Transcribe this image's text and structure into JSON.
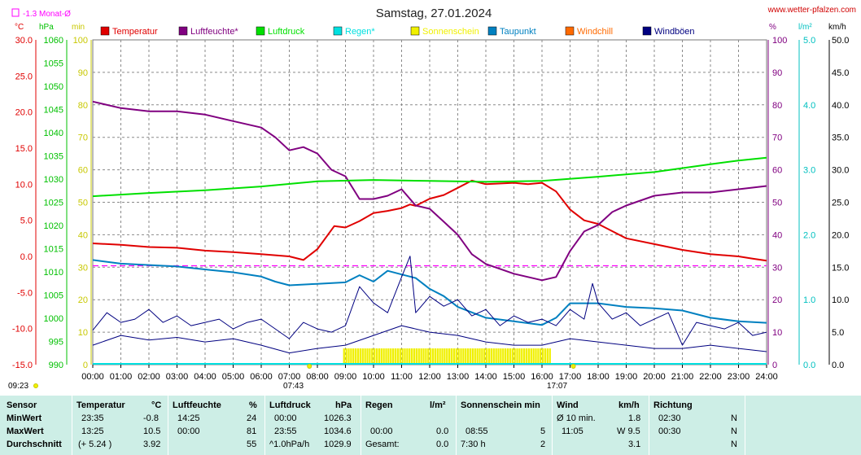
{
  "title": "Samstag, 27.01.2024",
  "source": "www.wetter-pfalzen.com",
  "avg_label": "-1.3 Monat-Ø",
  "units_left": [
    "°C",
    "hPa",
    "min"
  ],
  "units_right": [
    "%",
    "l/m²",
    "km/h"
  ],
  "colors": {
    "temperature": "#e00000",
    "humidity": "#800080",
    "pressure": "#00e000",
    "rain": "#00e0e0",
    "sunshine": "#f0f000",
    "dewpoint": "#0080c0",
    "windchill": "#ff6a00",
    "gusts": "#000080",
    "wind": "#000080",
    "avg": "#ff00ff"
  },
  "legend": [
    {
      "key": "temperature",
      "label": "Temperatur"
    },
    {
      "key": "humidity",
      "label": "Luftfeuchte*"
    },
    {
      "key": "pressure",
      "label": "Luftdruck"
    },
    {
      "key": "rain",
      "label": "Regen*"
    },
    {
      "key": "sunshine",
      "label": "Sonnenschein"
    },
    {
      "key": "dewpoint",
      "label": "Taupunkt"
    },
    {
      "key": "windchill",
      "label": "Windchill"
    },
    {
      "key": "gusts",
      "label": "Windböen"
    }
  ],
  "time_markers": {
    "sunrise": "07:43",
    "sunset": "17:07",
    "now": "09:23"
  },
  "chart_data": {
    "type": "line",
    "x_ticks": [
      "00:00",
      "01:00",
      "02:00",
      "03:00",
      "04:00",
      "05:00",
      "06:00",
      "07:00",
      "08:00",
      "09:00",
      "10:00",
      "11:00",
      "12:00",
      "13:00",
      "14:00",
      "15:00",
      "16:00",
      "17:00",
      "18:00",
      "19:00",
      "20:00",
      "21:00",
      "22:00",
      "23:00",
      "24:00"
    ],
    "axes": {
      "temperature_c": {
        "range": [
          -15,
          30
        ],
        "ticks": [
          "30.0",
          "25.0",
          "20.0",
          "15.0",
          "10.0",
          "5.0",
          "0.0",
          "-5.0",
          "-10.0",
          "-15.0"
        ]
      },
      "pressure_hpa": {
        "range": [
          990,
          1060
        ],
        "ticks": [
          "1060",
          "1055",
          "1050",
          "1045",
          "1040",
          "1035",
          "1030",
          "1025",
          "1020",
          "1015",
          "1010",
          "1005",
          "1000",
          "995",
          "990"
        ]
      },
      "sunshine_min": {
        "range": [
          0,
          100
        ],
        "ticks": [
          "100",
          "90",
          "80",
          "70",
          "60",
          "50",
          "40",
          "30",
          "20",
          "10",
          "0"
        ]
      },
      "humidity_pct": {
        "range": [
          0,
          100
        ],
        "ticks": [
          "100",
          "90",
          "80",
          "70",
          "60",
          "50",
          "40",
          "30",
          "20",
          "10",
          "0"
        ]
      },
      "rain_lm2": {
        "range": [
          0,
          5
        ],
        "ticks": [
          "5.0",
          "4.0",
          "3.0",
          "2.0",
          "1.0",
          "0.0"
        ]
      },
      "wind_kmh": {
        "range": [
          0,
          50
        ],
        "ticks": [
          "50.0",
          "45.0",
          "40.0",
          "35.0",
          "30.0",
          "25.0",
          "20.0",
          "15.0",
          "10.0",
          "5.0",
          "0.0"
        ]
      }
    },
    "monthly_avg_temperature": -1.3,
    "sunshine_period": [
      "08:55",
      "16:20"
    ],
    "series": [
      {
        "key": "temperature",
        "name": "Temperatur",
        "points": [
          [
            0,
            1.8
          ],
          [
            1,
            1.6
          ],
          [
            2,
            1.3
          ],
          [
            3,
            1.2
          ],
          [
            4,
            0.8
          ],
          [
            5,
            0.6
          ],
          [
            6,
            0.3
          ],
          [
            7,
            0.0
          ],
          [
            7.5,
            -0.5
          ],
          [
            8,
            1.0
          ],
          [
            8.6,
            4.2
          ],
          [
            9,
            4.0
          ],
          [
            9.5,
            4.9
          ],
          [
            10,
            6.0
          ],
          [
            10.5,
            6.3
          ],
          [
            11,
            6.7
          ],
          [
            11.3,
            7.2
          ],
          [
            11.5,
            7.0
          ],
          [
            12,
            8.0
          ],
          [
            12.5,
            8.5
          ],
          [
            13,
            9.5
          ],
          [
            13.5,
            10.5
          ],
          [
            14,
            10.0
          ],
          [
            15,
            10.2
          ],
          [
            15.5,
            10.0
          ],
          [
            16,
            10.2
          ],
          [
            16.5,
            9.0
          ],
          [
            17,
            6.5
          ],
          [
            17.5,
            5.0
          ],
          [
            18,
            4.5
          ],
          [
            18.5,
            3.5
          ],
          [
            19,
            2.5
          ],
          [
            20,
            1.7
          ],
          [
            21,
            0.9
          ],
          [
            22,
            0.3
          ],
          [
            23,
            0.0
          ],
          [
            23.5,
            -0.3
          ],
          [
            24,
            -0.6
          ]
        ]
      },
      {
        "key": "dewpoint",
        "name": "Taupunkt",
        "points": [
          [
            0,
            -0.5
          ],
          [
            1,
            -1.0
          ],
          [
            2,
            -1.2
          ],
          [
            3,
            -1.4
          ],
          [
            4,
            -1.8
          ],
          [
            5,
            -2.2
          ],
          [
            6,
            -2.8
          ],
          [
            6.5,
            -3.5
          ],
          [
            7,
            -4.0
          ],
          [
            8,
            -3.8
          ],
          [
            9,
            -3.6
          ],
          [
            9.5,
            -2.6
          ],
          [
            10,
            -3.5
          ],
          [
            10.5,
            -2.0
          ],
          [
            11,
            -2.5
          ],
          [
            11.5,
            -3.0
          ],
          [
            12,
            -4.5
          ],
          [
            12.5,
            -5.5
          ],
          [
            13,
            -7.0
          ],
          [
            14,
            -8.5
          ],
          [
            15,
            -9.0
          ],
          [
            16,
            -9.5
          ],
          [
            16.5,
            -8.5
          ],
          [
            17,
            -6.5
          ],
          [
            18,
            -6.5
          ],
          [
            19,
            -7.0
          ],
          [
            20,
            -7.2
          ],
          [
            21,
            -7.5
          ],
          [
            22,
            -8.5
          ],
          [
            23,
            -9.0
          ],
          [
            24,
            -9.2
          ]
        ]
      },
      {
        "key": "humidity",
        "name": "Luftfeuchte",
        "points": [
          [
            0,
            81
          ],
          [
            1,
            79
          ],
          [
            2,
            78
          ],
          [
            3,
            78
          ],
          [
            4,
            77
          ],
          [
            5,
            75
          ],
          [
            6,
            73
          ],
          [
            6.5,
            70
          ],
          [
            7,
            66
          ],
          [
            7.5,
            67
          ],
          [
            8,
            65
          ],
          [
            8.5,
            60
          ],
          [
            9,
            58
          ],
          [
            9.5,
            51
          ],
          [
            10,
            51
          ],
          [
            10.5,
            52
          ],
          [
            11,
            54
          ],
          [
            11.5,
            49
          ],
          [
            12,
            48
          ],
          [
            12.5,
            44
          ],
          [
            13,
            40
          ],
          [
            13.5,
            34
          ],
          [
            14,
            31
          ],
          [
            15,
            28
          ],
          [
            16,
            26
          ],
          [
            16.5,
            27
          ],
          [
            17,
            35
          ],
          [
            17.5,
            41
          ],
          [
            18,
            43
          ],
          [
            18.5,
            47
          ],
          [
            19,
            49
          ],
          [
            20,
            52
          ],
          [
            21,
            53
          ],
          [
            22,
            53
          ],
          [
            23,
            54
          ],
          [
            24,
            55
          ]
        ]
      },
      {
        "key": "pressure",
        "name": "Luftdruck",
        "points": [
          [
            0,
            1026.3
          ],
          [
            2,
            1027.0
          ],
          [
            4,
            1027.6
          ],
          [
            6,
            1028.4
          ],
          [
            8,
            1029.5
          ],
          [
            10,
            1029.8
          ],
          [
            12,
            1029.6
          ],
          [
            14,
            1029.4
          ],
          [
            16,
            1029.6
          ],
          [
            18,
            1030.5
          ],
          [
            20,
            1031.5
          ],
          [
            22,
            1033.2
          ],
          [
            23,
            1034.0
          ],
          [
            24,
            1034.6
          ]
        ]
      },
      {
        "key": "gusts",
        "name": "Windböen",
        "points": [
          [
            0,
            5.3
          ],
          [
            0.5,
            8.0
          ],
          [
            1,
            6.5
          ],
          [
            1.5,
            7.0
          ],
          [
            2,
            8.5
          ],
          [
            2.5,
            6.5
          ],
          [
            3,
            7.5
          ],
          [
            3.5,
            6.0
          ],
          [
            4,
            6.5
          ],
          [
            4.5,
            7.0
          ],
          [
            5,
            5.5
          ],
          [
            5.5,
            6.5
          ],
          [
            6,
            7.0
          ],
          [
            6.5,
            5.5
          ],
          [
            7,
            4.0
          ],
          [
            7.5,
            6.5
          ],
          [
            8,
            5.5
          ],
          [
            8.5,
            5.0
          ],
          [
            9,
            6.0
          ],
          [
            9.5,
            12.0
          ],
          [
            10,
            9.5
          ],
          [
            10.5,
            8.0
          ],
          [
            11,
            13.5
          ],
          [
            11.3,
            16.7
          ],
          [
            11.5,
            8.0
          ],
          [
            12,
            10.5
          ],
          [
            12.5,
            9.0
          ],
          [
            13,
            10.0
          ],
          [
            13.5,
            7.5
          ],
          [
            14,
            8.5
          ],
          [
            14.5,
            6.0
          ],
          [
            15,
            7.5
          ],
          [
            15.5,
            6.5
          ],
          [
            16,
            7.0
          ],
          [
            16.5,
            6.0
          ],
          [
            17,
            8.5
          ],
          [
            17.5,
            7.0
          ],
          [
            17.8,
            12.5
          ],
          [
            18,
            9.5
          ],
          [
            18.5,
            7.0
          ],
          [
            19,
            8.0
          ],
          [
            19.5,
            6.0
          ],
          [
            20,
            7.0
          ],
          [
            20.5,
            8.0
          ],
          [
            21,
            3.0
          ],
          [
            21.5,
            6.5
          ],
          [
            22,
            6.0
          ],
          [
            22.5,
            5.5
          ],
          [
            23,
            6.5
          ],
          [
            23.5,
            4.5
          ],
          [
            24,
            5.0
          ]
        ]
      },
      {
        "key": "wind",
        "name": "Wind",
        "points": [
          [
            0,
            3.0
          ],
          [
            1,
            4.5
          ],
          [
            2,
            3.8
          ],
          [
            3,
            4.2
          ],
          [
            4,
            3.5
          ],
          [
            5,
            4.0
          ],
          [
            6,
            3.0
          ],
          [
            7,
            1.8
          ],
          [
            8,
            2.5
          ],
          [
            9,
            3.0
          ],
          [
            10,
            4.5
          ],
          [
            11,
            6.0
          ],
          [
            12,
            5.0
          ],
          [
            13,
            4.5
          ],
          [
            14,
            3.5
          ],
          [
            15,
            3.0
          ],
          [
            16,
            3.0
          ],
          [
            17,
            4.0
          ],
          [
            18,
            3.5
          ],
          [
            19,
            3.0
          ],
          [
            20,
            2.5
          ],
          [
            21,
            2.5
          ],
          [
            22,
            3.0
          ],
          [
            23,
            2.5
          ],
          [
            24,
            2.0
          ]
        ]
      }
    ]
  },
  "stats": {
    "headers": [
      {
        "label": "Sensor",
        "unit": ""
      },
      {
        "label": "Temperatur",
        "unit": "°C"
      },
      {
        "label": "Luftfeuchte",
        "unit": "%"
      },
      {
        "label": "Luftdruck",
        "unit": "hPa"
      },
      {
        "label": "Regen",
        "unit": "l/m²"
      },
      {
        "label": "Sonnenschein min",
        "unit": ""
      },
      {
        "label": "Wind",
        "unit": "km/h"
      },
      {
        "label": "Richtung",
        "unit": ""
      }
    ],
    "rows": [
      {
        "label": "MinWert",
        "temp_time": "23:35",
        "temp_val": "-0.8",
        "hum_time": "14:25",
        "hum_val": "24",
        "press_time": "00:00",
        "press_val": "1026.3",
        "rain_time": "",
        "rain_val": "",
        "sun_time": "",
        "sun_val": "",
        "wind_time": "Ø 10 min.",
        "wind_val": "1.8",
        "dir_time": "02:30",
        "dir_val": "N"
      },
      {
        "label": "MaxWert",
        "temp_time": "13:25",
        "temp_val": "10.5",
        "hum_time": "00:00",
        "hum_val": "81",
        "press_time": "23:55",
        "press_val": "1034.6",
        "rain_time": "00:00",
        "rain_val": "0.0",
        "sun_time": "08:55",
        "sun_val": "5",
        "wind_time": "11:05",
        "wind_val": "W 9.5",
        "dir_time": "00:30",
        "dir_val": "N"
      },
      {
        "label": "Durchschnitt",
        "temp_time": "(+ 5.24 )",
        "temp_val": "3.92",
        "hum_time": "",
        "hum_val": "55",
        "press_time": "^1.0hPa/h",
        "press_val": "1029.9",
        "rain_time": "Gesamt:",
        "rain_val": "0.0",
        "sun_time": "7:30 h",
        "sun_val": "2",
        "wind_time": "",
        "wind_val": "3.1",
        "dir_time": "",
        "dir_val": "N"
      }
    ]
  }
}
